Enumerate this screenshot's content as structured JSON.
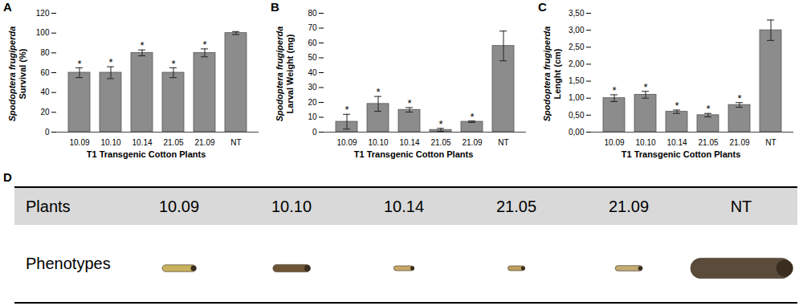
{
  "chart_data": [
    {
      "panel": "A",
      "type": "bar",
      "ylabel_species": "Spodoptera frugiperda",
      "ylabel": "Survival (%)",
      "xlabel": "T1 Transgenic Cotton Plants",
      "categories": [
        "10.09",
        "10.10",
        "10.14",
        "21.05",
        "21.09",
        "NT"
      ],
      "values": [
        60,
        60,
        80,
        60,
        80,
        100
      ],
      "errors": [
        5,
        6,
        3,
        5,
        4,
        1.5
      ],
      "annotations": [
        "*",
        "*",
        "*",
        "*",
        "*",
        null
      ],
      "color": "#8c8c8c",
      "ylim": [
        0,
        120
      ],
      "yticks": [
        0,
        20,
        40,
        60,
        80,
        100,
        120
      ],
      "grid": false
    },
    {
      "panel": "B",
      "type": "bar",
      "ylabel_species": "Spodoptera frugiperda",
      "ylabel": "Larval Weight (mg)",
      "xlabel": "T1 Transgenic Cotton Plants",
      "categories": [
        "10.09",
        "10.10",
        "10.14",
        "21.05",
        "21.09",
        "NT"
      ],
      "values": [
        7,
        19,
        15,
        1.5,
        7,
        58
      ],
      "errors": [
        5,
        5,
        1.5,
        1,
        0.5,
        10
      ],
      "annotations": [
        "*",
        "*",
        "*",
        "*",
        "*",
        null
      ],
      "color": "#8c8c8c",
      "ylim": [
        0,
        80
      ],
      "yticks": [
        0,
        10,
        20,
        30,
        40,
        50,
        60,
        70,
        80
      ],
      "grid": false
    },
    {
      "panel": "C",
      "type": "bar",
      "ylabel_species": "Spodoptera frugiperda",
      "ylabel": "Lenght (cm)",
      "xlabel": "T1 Transgenic Cotton Plants",
      "categories": [
        "10.09",
        "10.10",
        "10.14",
        "21.05",
        "21.09",
        "NT"
      ],
      "values": [
        1.0,
        1.1,
        0.6,
        0.5,
        0.8,
        3.0
      ],
      "errors": [
        0.1,
        0.1,
        0.05,
        0.05,
        0.07,
        0.3
      ],
      "annotations": [
        "*",
        "*",
        "*",
        "*",
        "*",
        null
      ],
      "color": "#8c8c8c",
      "ylim": [
        0,
        3.5
      ],
      "yticks": [
        {
          "value": 0,
          "label": "0,00"
        },
        {
          "value": 0.5,
          "label": "0,50"
        },
        {
          "value": 1,
          "label": "1,00"
        },
        {
          "value": 1.5,
          "label": "1,50"
        },
        {
          "value": 2,
          "label": "2,00"
        },
        {
          "value": 2.5,
          "label": "2,50"
        },
        {
          "value": 3,
          "label": "3,00"
        },
        {
          "value": 3.5,
          "label": "3,50"
        }
      ],
      "grid": false
    }
  ],
  "table": {
    "panel": "D",
    "row_headers": [
      "Plants",
      "Phenotypes"
    ],
    "columns": [
      "10.09",
      "10.10",
      "10.14",
      "21.05",
      "21.09",
      "NT"
    ]
  }
}
